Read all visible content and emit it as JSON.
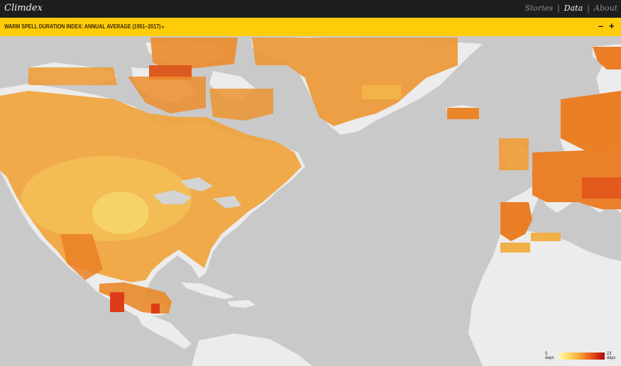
{
  "app": {
    "title": "Climdex"
  },
  "nav": {
    "stories": "Stories",
    "separator": "|",
    "data": "Data",
    "about": "About"
  },
  "dataset": {
    "label": "WARM SPELL DURATION INDEX: ANNUAL AVERAGE (1951–2017)",
    "caret": "▾"
  },
  "zoom": {
    "out": "–",
    "in": "+"
  },
  "legend": {
    "min_label": "0 days",
    "max_label": "23 days"
  },
  "colors": {
    "topbar": "#1e1e1e",
    "accent": "#ffcc0a",
    "ocean": "#c9c9c9",
    "land": "#ececec"
  }
}
